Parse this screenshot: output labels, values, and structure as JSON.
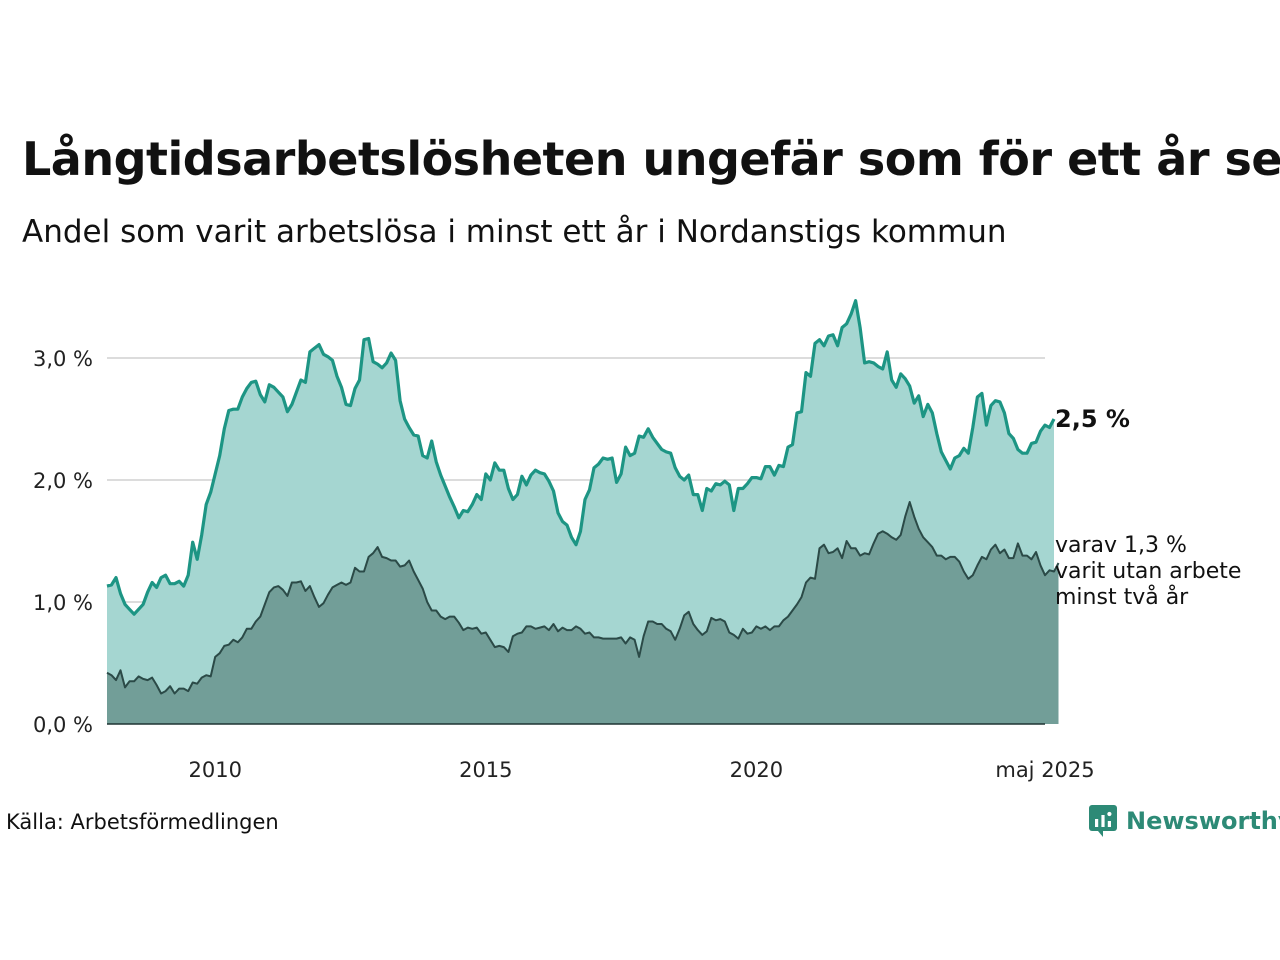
{
  "title": "Långtidsarbetslösheten ungefär som för ett år sen",
  "subtitle": "Andel som varit arbetslösa i minst ett år i Nordanstigs kommun",
  "source": "Källa: Arbetsförmedlingen",
  "brand": {
    "name": "Newsworthy",
    "icon": "newsworthy-logo-icon"
  },
  "colors": {
    "total_fill": "#a5d6d1",
    "total_line": "#1d9584",
    "sub_fill": "#729e98",
    "sub_line": "#2b4a47",
    "grid": "#dcdcdc",
    "brand": "#2d8a76"
  },
  "chart_data": {
    "type": "area",
    "x_start": "2008-01",
    "x_end": "2025-05",
    "x_ticks": [
      {
        "label": "2010",
        "x": "2010-01"
      },
      {
        "label": "2015",
        "x": "2015-01"
      },
      {
        "label": "2020",
        "x": "2020-01"
      },
      {
        "label": "maj 2025",
        "x": "2025-05"
      }
    ],
    "y_ticks": [
      {
        "label": "0,0 %",
        "value": 0
      },
      {
        "label": "1,0 %",
        "value": 1
      },
      {
        "label": "2,0 %",
        "value": 2
      },
      {
        "label": "3,0 %",
        "value": 3
      }
    ],
    "ylim": [
      0,
      3.6
    ],
    "grid": true,
    "series": [
      {
        "end_label": "2,5 %",
        "values": [
          1.13,
          1.14,
          1.2,
          1.07,
          0.98,
          0.94,
          0.9,
          0.94,
          0.98,
          1.08,
          1.16,
          1.12,
          1.2,
          1.22,
          1.15,
          1.15,
          1.17,
          1.13,
          1.22,
          1.49,
          1.35,
          1.55,
          1.8,
          1.9,
          2.05,
          2.2,
          2.42,
          2.57,
          2.58,
          2.58,
          2.68,
          2.75,
          2.8,
          2.81,
          2.7,
          2.64,
          2.78,
          2.76,
          2.72,
          2.68,
          2.56,
          2.62,
          2.72,
          2.82,
          2.8,
          3.05,
          3.08,
          3.11,
          3.03,
          3.01,
          2.98,
          2.85,
          2.76,
          2.62,
          2.61,
          2.75,
          2.82,
          3.15,
          3.16,
          2.97,
          2.95,
          2.92,
          2.96,
          3.04,
          2.98,
          2.65,
          2.5,
          2.43,
          2.37,
          2.36,
          2.2,
          2.18,
          2.32,
          2.15,
          2.04,
          1.95,
          1.86,
          1.78,
          1.69,
          1.75,
          1.74,
          1.8,
          1.88,
          1.84,
          2.05,
          2.0,
          2.14,
          2.08,
          2.08,
          1.93,
          1.84,
          1.88,
          2.03,
          1.96,
          2.04,
          2.08,
          2.06,
          2.05,
          1.99,
          1.91,
          1.73,
          1.66,
          1.63,
          1.53,
          1.47,
          1.58,
          1.84,
          1.92,
          2.1,
          2.13,
          2.18,
          2.17,
          2.18,
          1.98,
          2.05,
          2.27,
          2.2,
          2.22,
          2.36,
          2.35,
          2.42,
          2.35,
          2.3,
          2.25,
          2.23,
          2.22,
          2.1,
          2.03,
          2.0,
          2.04,
          1.88,
          1.88,
          1.75,
          1.93,
          1.91,
          1.97,
          1.96,
          1.99,
          1.96,
          1.75,
          1.93,
          1.93,
          1.97,
          2.02,
          2.02,
          2.01,
          2.11,
          2.11,
          2.04,
          2.12,
          2.11,
          2.27,
          2.29,
          2.55,
          2.56,
          2.88,
          2.85,
          3.12,
          3.15,
          3.1,
          3.18,
          3.19,
          3.1,
          3.25,
          3.28,
          3.36,
          3.47,
          3.25,
          2.96,
          2.97,
          2.96,
          2.93,
          2.91,
          3.05,
          2.82,
          2.76,
          2.87,
          2.83,
          2.77,
          2.63,
          2.69,
          2.52,
          2.62,
          2.55,
          2.38,
          2.23,
          2.16,
          2.09,
          2.18,
          2.2,
          2.26,
          2.22,
          2.43,
          2.68,
          2.71,
          2.45,
          2.61,
          2.65,
          2.64,
          2.55,
          2.38,
          2.34,
          2.25,
          2.22,
          2.22,
          2.3,
          2.31,
          2.4,
          2.45,
          2.43,
          2.5
        ]
      },
      {
        "end_label_lines": [
          "varav 1,3 %",
          "varit utan arbete",
          "minst två år"
        ],
        "values": [
          0.42,
          0.4,
          0.36,
          0.44,
          0.3,
          0.35,
          0.35,
          0.39,
          0.37,
          0.36,
          0.38,
          0.32,
          0.25,
          0.27,
          0.31,
          0.25,
          0.29,
          0.29,
          0.27,
          0.34,
          0.33,
          0.38,
          0.4,
          0.39,
          0.55,
          0.58,
          0.64,
          0.65,
          0.69,
          0.67,
          0.71,
          0.78,
          0.78,
          0.84,
          0.88,
          0.98,
          1.08,
          1.12,
          1.13,
          1.1,
          1.05,
          1.16,
          1.16,
          1.17,
          1.09,
          1.13,
          1.04,
          0.96,
          0.99,
          1.06,
          1.12,
          1.14,
          1.16,
          1.14,
          1.16,
          1.28,
          1.25,
          1.25,
          1.37,
          1.4,
          1.45,
          1.37,
          1.36,
          1.34,
          1.34,
          1.29,
          1.3,
          1.34,
          1.25,
          1.18,
          1.11,
          1.0,
          0.93,
          0.93,
          0.88,
          0.86,
          0.88,
          0.88,
          0.83,
          0.77,
          0.79,
          0.78,
          0.79,
          0.74,
          0.75,
          0.69,
          0.63,
          0.64,
          0.63,
          0.59,
          0.72,
          0.74,
          0.75,
          0.8,
          0.8,
          0.78,
          0.79,
          0.8,
          0.77,
          0.82,
          0.76,
          0.79,
          0.77,
          0.77,
          0.8,
          0.78,
          0.74,
          0.75,
          0.71,
          0.71,
          0.7,
          0.7,
          0.7,
          0.7,
          0.71,
          0.66,
          0.71,
          0.69,
          0.55,
          0.72,
          0.84,
          0.84,
          0.82,
          0.82,
          0.78,
          0.76,
          0.69,
          0.78,
          0.89,
          0.92,
          0.82,
          0.77,
          0.73,
          0.76,
          0.87,
          0.85,
          0.86,
          0.84,
          0.75,
          0.73,
          0.7,
          0.78,
          0.74,
          0.75,
          0.8,
          0.78,
          0.8,
          0.77,
          0.8,
          0.8,
          0.85,
          0.88,
          0.93,
          0.98,
          1.04,
          1.16,
          1.2,
          1.19,
          1.44,
          1.47,
          1.4,
          1.41,
          1.44,
          1.36,
          1.5,
          1.44,
          1.44,
          1.38,
          1.4,
          1.39,
          1.48,
          1.56,
          1.58,
          1.56,
          1.53,
          1.51,
          1.55,
          1.7,
          1.82,
          1.7,
          1.6,
          1.53,
          1.49,
          1.45,
          1.38,
          1.38,
          1.35,
          1.37,
          1.37,
          1.33,
          1.25,
          1.19,
          1.22,
          1.3,
          1.37,
          1.35,
          1.43,
          1.47,
          1.4,
          1.43,
          1.36,
          1.36,
          1.48,
          1.38,
          1.38,
          1.35,
          1.41,
          1.3,
          1.22,
          1.26,
          1.25,
          1.32
        ]
      }
    ]
  }
}
